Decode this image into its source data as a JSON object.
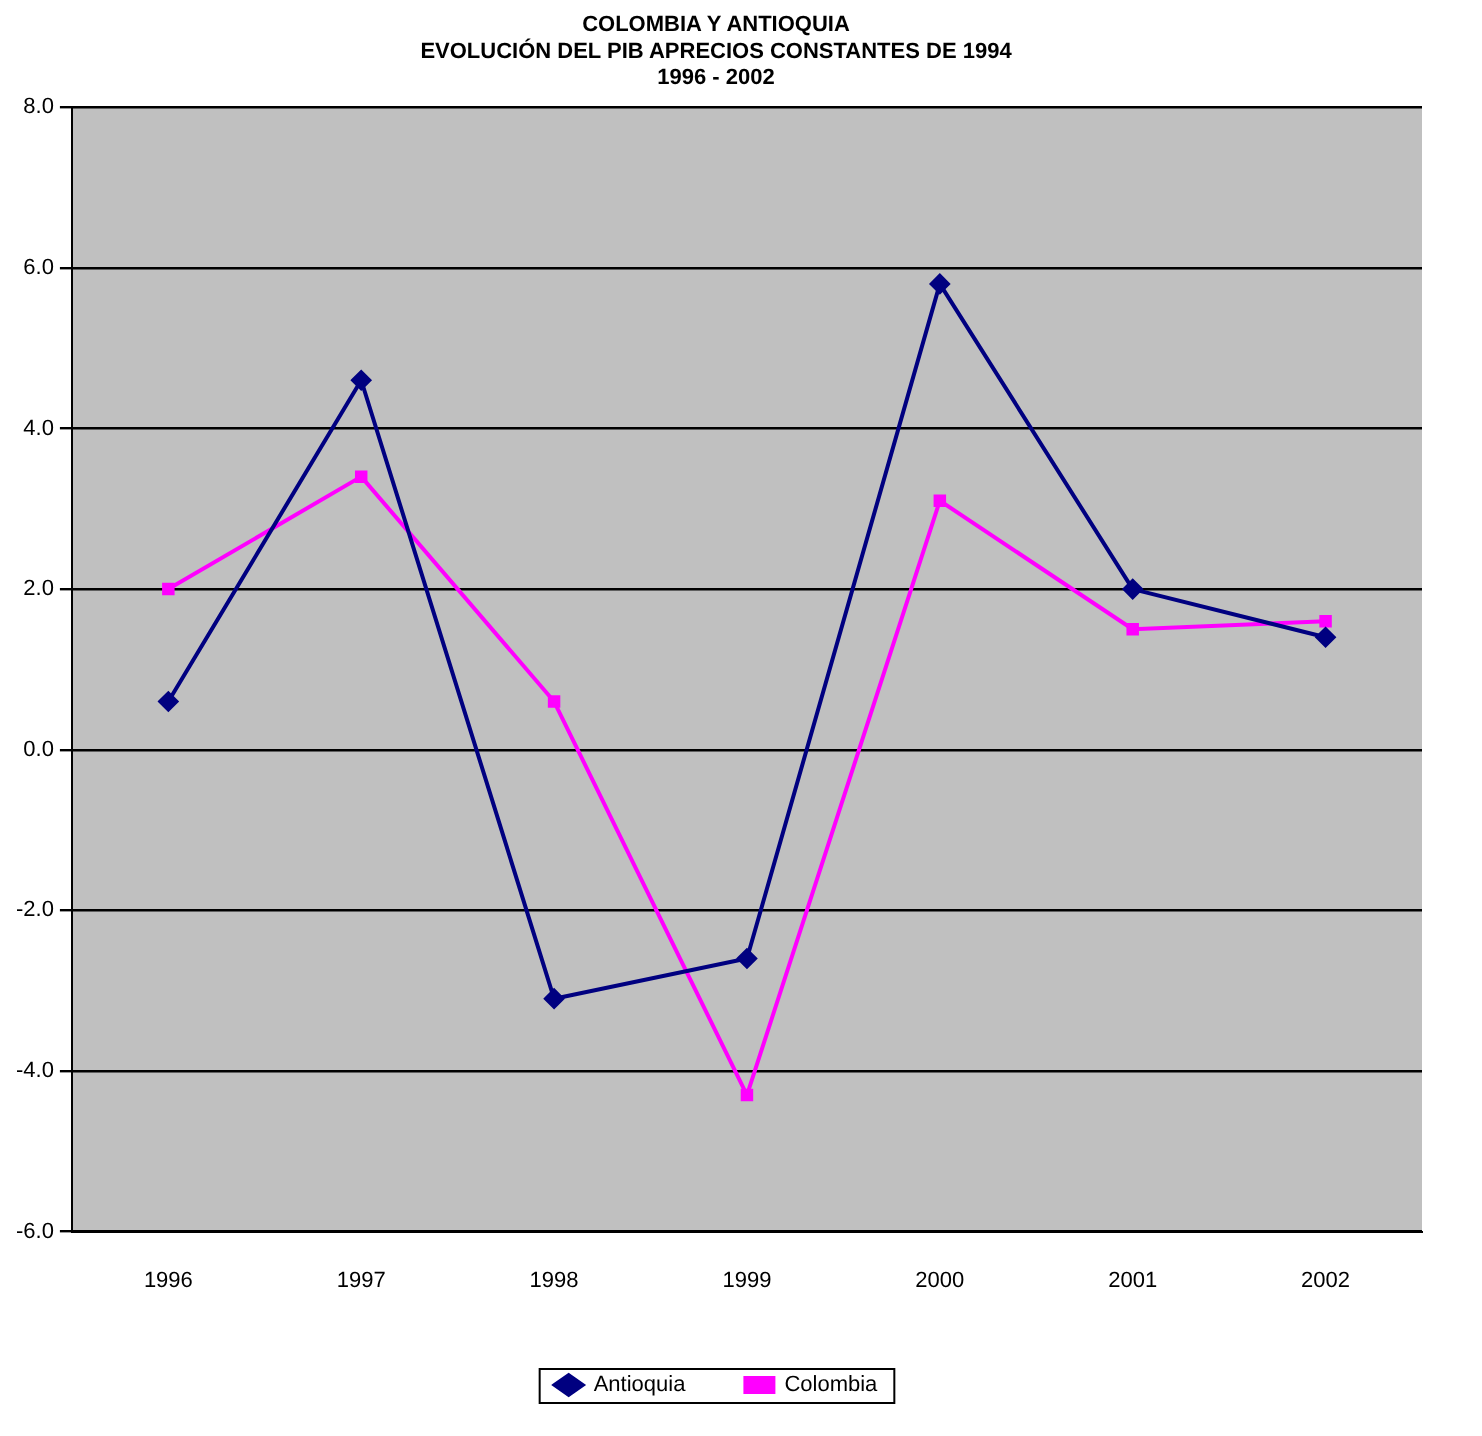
{
  "chart_data": {
    "type": "line",
    "title": "COLOMBIA Y ANTIOQUIA\nEVOLUCIÓN DEL PIB APRECIOS CONSTANTES DE 1994",
    "subtitle": "1996 - 2002",
    "categories": [
      "1996",
      "1997",
      "1998",
      "1999",
      "2000",
      "2001",
      "2002"
    ],
    "series": [
      {
        "name": "Antioquia",
        "color": "#000080",
        "marker": "diamond",
        "values": [
          0.6,
          4.6,
          -3.1,
          -2.6,
          5.8,
          2.0,
          1.4
        ]
      },
      {
        "name": "Colombia",
        "color": "#ff00ff",
        "marker": "square",
        "values": [
          2.0,
          3.4,
          0.6,
          -4.3,
          3.1,
          1.5,
          1.6
        ]
      }
    ],
    "ylim": [
      -6,
      8
    ],
    "yticks": [
      {
        "value": -6,
        "label": "-6.0"
      },
      {
        "value": -4,
        "label": "-4.0"
      },
      {
        "value": -2,
        "label": "-2.0"
      },
      {
        "value": 0,
        "label": "0.0"
      },
      {
        "value": 2,
        "label": "2.0"
      },
      {
        "value": 4,
        "label": "4.0"
      },
      {
        "value": 6,
        "label": "6.0"
      },
      {
        "value": 8,
        "label": "8.0"
      }
    ],
    "grid": "y",
    "legend": "bottom",
    "line_style": "solid"
  }
}
